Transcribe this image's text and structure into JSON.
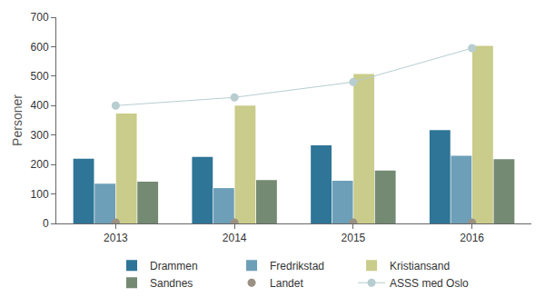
{
  "chart_data": {
    "type": "bar",
    "y_label": "Personer",
    "categories": [
      "2013",
      "2014",
      "2015",
      "2016"
    ],
    "ylim": [
      0,
      700
    ],
    "yticks": [
      0,
      100,
      200,
      300,
      400,
      500,
      600,
      700
    ],
    "grid": false,
    "legend": "bottom",
    "series": [
      {
        "name": "Drammen",
        "color": "#2e7597",
        "values": [
          220,
          226,
          265,
          317
        ]
      },
      {
        "name": "Fredrikstad",
        "color": "#6e9fb8",
        "values": [
          135,
          120,
          145,
          230
        ]
      },
      {
        "name": "Kristiansand",
        "color": "#c9cc8a",
        "values": [
          373,
          400,
          507,
          603
        ]
      },
      {
        "name": "Sandnes",
        "color": "#748a73",
        "values": [
          142,
          147,
          180,
          218
        ]
      },
      {
        "name": "Landet",
        "color": "#9a9184",
        "type": "scatter",
        "marker": "circle",
        "values": [
          3,
          3,
          3,
          3
        ]
      },
      {
        "name": "ASSS med Oslo",
        "color": "#b7cdd0",
        "type": "line",
        "marker": "circle",
        "values": [
          400,
          428,
          480,
          595
        ]
      }
    ]
  }
}
